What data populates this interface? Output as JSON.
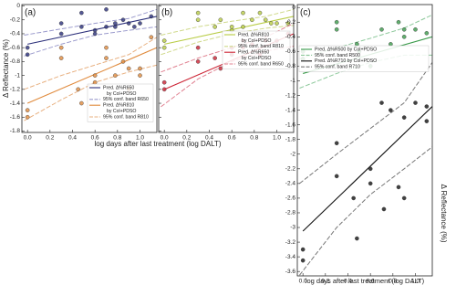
{
  "y_label": "Δ Reflectance (%)",
  "x_label": "log days after last treatment (log DALT)",
  "panels": [
    {
      "type": "scatter",
      "label": "(a)",
      "xlim": [
        -0.05,
        1.15
      ],
      "ylim": [
        -1.82,
        0.02
      ],
      "xticks": [
        {
          "value": 0,
          "label": "0.0"
        },
        0.2,
        0.4,
        0.6,
        0.8,
        {
          "value": 1,
          "label": "1.0"
        }
      ],
      "yticks": [
        0,
        -0.2,
        -0.4,
        -0.6,
        -0.8,
        -1,
        -1.2,
        -1.4,
        -1.6,
        -1.8
      ],
      "show_ytick_labels": true,
      "groups": [
        {
          "fit_name": [
            "Pred. Δ%R650",
            "by Col+PDSO"
          ],
          "band_name": "95% conf. band R650",
          "color": "#2b2f7a",
          "band_color": "#9a9acc",
          "points": {
            "x": [
              0,
              0,
              0.3,
              0.3,
              0.48,
              0.48,
              0.6,
              0.6,
              0.7,
              0.7,
              0.78,
              0.78,
              0.85,
              0.9,
              0.95,
              1.0,
              1.1
            ],
            "y": [
              -0.6,
              -0.7,
              -0.4,
              -0.25,
              -0.1,
              -0.3,
              -0.35,
              -0.4,
              -0.05,
              -0.3,
              -0.3,
              -0.25,
              -0.2,
              -0.25,
              -0.3,
              -0.25,
              -0.15
            ]
          },
          "fit": {
            "x": [
              0,
              1.15
            ],
            "y": [
              -0.55,
              -0.15
            ]
          },
          "band": {
            "x": [
              -0.03,
              0.3,
              0.6,
              0.9,
              1.15
            ],
            "upper": [
              -0.42,
              -0.33,
              -0.25,
              -0.18,
              -0.05
            ],
            "lower": [
              -0.72,
              -0.55,
              -0.42,
              -0.35,
              -0.3
            ]
          }
        },
        {
          "fit_name": [
            "Pred. Δ%R810",
            "by Col+PDSO"
          ],
          "band_name": "95% conf. band R810",
          "color": "#e08a3c",
          "band_color": "#e8b080",
          "points": {
            "x": [
              0,
              0,
              0.3,
              0.3,
              0.45,
              0.48,
              0.6,
              0.6,
              0.7,
              0.7,
              0.78,
              0.85,
              0.9,
              0.9,
              1.0,
              1.0,
              1.1
            ],
            "y": [
              -1.5,
              -1.6,
              -0.6,
              -0.75,
              -1.2,
              -1.4,
              -1.0,
              -1.1,
              -0.6,
              -0.75,
              -1.0,
              -0.8,
              -1.2,
              -0.9,
              -0.9,
              -1.0,
              -0.45
            ]
          },
          "fit": {
            "x": [
              0,
              1.15
            ],
            "y": [
              -1.4,
              -0.6
            ]
          },
          "band": {
            "x": [
              -0.03,
              0.3,
              0.6,
              0.9,
              1.15
            ],
            "upper": [
              -1.2,
              -1.0,
              -0.85,
              -0.7,
              -0.45
            ],
            "lower": [
              -1.65,
              -1.35,
              -1.1,
              -0.95,
              -0.85
            ]
          }
        }
      ]
    },
    {
      "type": "scatter",
      "label": "(b)",
      "xlim": [
        -0.05,
        1.15
      ],
      "ylim": [
        -1.82,
        0.02
      ],
      "xticks": [
        {
          "value": 0,
          "label": "0.0"
        },
        0.2,
        0.4,
        0.6,
        0.8,
        {
          "value": 1,
          "label": "1.0"
        }
      ],
      "yticks": [
        0,
        -0.2,
        -0.4,
        -0.6,
        -0.8,
        -1,
        -1.2,
        -1.4,
        -1.6,
        -1.8
      ],
      "show_ytick_labels": false,
      "groups": [
        {
          "fit_name": [
            "Pred. Δ%R810",
            "by Col+PDSO"
          ],
          "band_name": "95% conf. band R810",
          "color": "#b8cc44",
          "band_color": "#cfd98a",
          "points": {
            "x": [
              0,
              0,
              0.3,
              0.3,
              0.45,
              0.5,
              0.6,
              0.6,
              0.7,
              0.7,
              0.78,
              0.85,
              0.9,
              0.95,
              1.0,
              1.1
            ],
            "y": [
              -0.5,
              -0.6,
              -0.1,
              -0.2,
              -0.3,
              -0.2,
              -0.35,
              -0.3,
              -0.3,
              -0.1,
              -0.2,
              -0.1,
              -0.2,
              -0.25,
              -0.25,
              -0.25
            ]
          },
          "fit": {
            "x": [
              0,
              1.15
            ],
            "y": [
              -0.55,
              -0.15
            ]
          },
          "band": {
            "x": [
              -0.03,
              0.3,
              0.6,
              0.9,
              1.15
            ],
            "upper": [
              -0.42,
              -0.3,
              -0.22,
              -0.15,
              -0.05
            ],
            "lower": [
              -0.7,
              -0.52,
              -0.4,
              -0.32,
              -0.28
            ]
          }
        },
        {
          "fit_name": [
            "Pred. Δ%R650",
            "by Col+PDSO"
          ],
          "band_name": "95% conf. band R650",
          "color": "#cc2233",
          "band_color": "#e08090",
          "points": {
            "x": [
              0,
              0,
              0.3,
              0.3,
              0.45,
              0.5,
              0.6,
              0.6,
              0.7,
              0.7,
              0.78,
              0.85,
              0.9,
              1.0,
              1.1
            ],
            "y": [
              -1.1,
              -1.2,
              -0.6,
              -0.8,
              -0.75,
              -0.9,
              -0.6,
              -0.7,
              -0.5,
              -0.6,
              -0.55,
              -0.7,
              -0.5,
              -0.5,
              -0.4
            ]
          },
          "fit": {
            "x": [
              0,
              1.15
            ],
            "y": [
              -1.2,
              -0.4
            ]
          },
          "band": {
            "x": [
              -0.03,
              0.3,
              0.6,
              0.9,
              1.15
            ],
            "upper": [
              -0.95,
              -0.75,
              -0.6,
              -0.45,
              -0.25
            ],
            "lower": [
              -1.45,
              -1.05,
              -0.8,
              -0.65,
              -0.58
            ]
          }
        }
      ]
    },
    {
      "type": "scatter",
      "label": "(c)",
      "xlim": [
        -0.05,
        1.15
      ],
      "ylim": [
        -3.66,
        0.04
      ],
      "x_label": "log days after last treatment (log DALT)",
      "y_label": "Δ Reflectance (%)",
      "xticks": [
        {
          "value": 0,
          "label": "0.0"
        },
        0.2,
        0.4,
        0.6,
        0.8,
        {
          "value": 1,
          "label": "1.0"
        }
      ],
      "yticks": [
        0,
        -0.2,
        -0.4,
        -0.6,
        -0.8,
        -1,
        -1.2,
        -1.4,
        -1.6,
        -1.8,
        -2,
        -2.2,
        -2.4,
        -2.6,
        -2.8,
        -3,
        -3.2,
        -3.4,
        -3.6
      ],
      "show_ytick_labels": true,
      "groups": [
        {
          "fit_name": [
            "Pred. Δ%R500 by Col+PDSO"
          ],
          "band_name": "95% conf. band R500",
          "color": "#3a9a4a",
          "band_color": "#8cc89a",
          "points": {
            "x": [
              0,
              0,
              0.3,
              0.3,
              0.48,
              0.5,
              0.6,
              0.7,
              0.78,
              0.85,
              0.9,
              0.9,
              1.0,
              1.1
            ],
            "y": [
              -0.7,
              -0.6,
              -0.2,
              -0.3,
              -0.5,
              -0.6,
              -0.8,
              -0.3,
              -0.5,
              -0.2,
              -0.4,
              -0.3,
              -0.3,
              -0.35
            ]
          },
          "fit": {
            "x": [
              0,
              1.15
            ],
            "y": [
              -0.9,
              -0.4
            ]
          },
          "band": {
            "x": [
              -0.03,
              0.3,
              0.6,
              0.9,
              1.15
            ],
            "upper": [
              -0.7,
              -0.55,
              -0.42,
              -0.28,
              -0.1
            ],
            "lower": [
              -1.1,
              -0.9,
              -0.75,
              -0.65,
              -0.65
            ]
          }
        },
        {
          "fit_name": [
            "Pred. Δ%R710 by Col+PDSO"
          ],
          "band_name": "95% conf. band R710",
          "color": "#111111",
          "band_color": "#777777",
          "points": {
            "x": [
              0,
              0,
              0.3,
              0.3,
              0.45,
              0.48,
              0.6,
              0.6,
              0.7,
              0.72,
              0.78,
              0.85,
              0.9,
              0.9,
              1.0,
              1.1,
              1.1
            ],
            "y": [
              -3.3,
              -3.45,
              -1.85,
              -2.3,
              -2.6,
              -3.15,
              -2.4,
              -2.2,
              -1.3,
              -2.75,
              -1.4,
              -2.45,
              -2.6,
              -1.5,
              -1.3,
              -1.55,
              -1.35
            ]
          },
          "fit": {
            "x": [
              0,
              1.15
            ],
            "y": [
              -3.05,
              -1.35
            ]
          },
          "band": {
            "x": [
              -0.03,
              0.3,
              0.6,
              0.9,
              1.15
            ],
            "upper": [
              -2.4,
              -2.0,
              -1.65,
              -1.3,
              -0.75
            ],
            "lower": [
              -3.65,
              -3.0,
              -2.55,
              -2.2,
              -1.9
            ]
          }
        }
      ]
    }
  ]
}
